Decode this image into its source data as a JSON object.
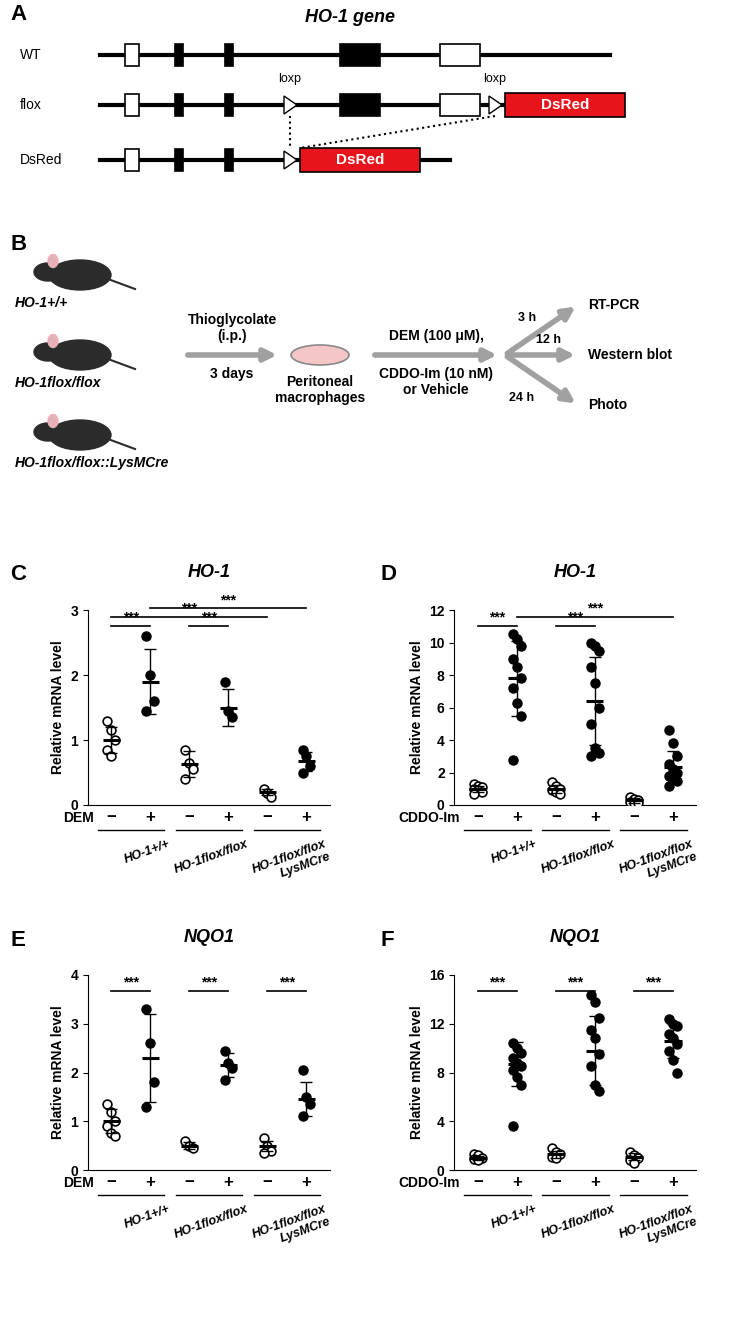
{
  "panel_A": {
    "label": "A",
    "title": "HO-1 gene",
    "rows": [
      "WT",
      "flox",
      "DsRed"
    ],
    "loxp": "loxp",
    "cassette": "DsRed"
  },
  "panel_B": {
    "label": "B",
    "genotypes": [
      "HO-1+/+",
      "HO-1flox/flox",
      "HO-1flox/flox::LysMCre"
    ],
    "injection": "Thioglycolate\n(i.p.)",
    "duration": "3 days",
    "cells": "Peritoneal\nmacrophages",
    "treatment_lines": [
      "DEM (100 μM),",
      "CDDO-Im (10 nM)",
      "or Vehicle"
    ],
    "readouts": [
      {
        "time": "3 h",
        "assay": "RT-PCR"
      },
      {
        "time": "12 h",
        "assay": "Western blot"
      },
      {
        "time": "24 h",
        "assay": "Photo"
      }
    ]
  },
  "chart_data": [
    {
      "panel": "C",
      "type": "scatter",
      "title": "HO-1",
      "ylabel": "Relative mRNA level",
      "treatment": "DEM",
      "categories": [
        "−",
        "+",
        "−",
        "+",
        "−",
        "+"
      ],
      "genotypes": [
        "HO-1+/+",
        "HO-1flox/flox",
        "HO-1flox/flox\nLysMCre"
      ],
      "points": [
        [
          1.3,
          1.15,
          1.0,
          0.85,
          0.75
        ],
        [
          2.6,
          2.0,
          1.6,
          1.45
        ],
        [
          0.85,
          0.65,
          0.55,
          0.4
        ],
        [
          1.9,
          1.45,
          1.35
        ],
        [
          0.25,
          0.18,
          0.12
        ],
        [
          0.85,
          0.75,
          0.6,
          0.5
        ]
      ],
      "means": [
        1.0,
        1.9,
        0.63,
        1.5,
        0.2,
        0.67
      ],
      "sd": [
        0.2,
        0.5,
        0.2,
        0.28,
        0.05,
        0.15
      ],
      "ylim": [
        0,
        3
      ],
      "yticks": [
        0,
        1,
        2,
        3
      ],
      "comparisons": [
        {
          "groups": [
            0,
            1
          ],
          "label": "***"
        },
        {
          "groups": [
            2,
            3
          ],
          "label": "***"
        },
        {
          "groups": [
            0,
            4
          ],
          "label": "***"
        },
        {
          "groups": [
            1,
            5
          ],
          "label": "***"
        }
      ]
    },
    {
      "panel": "D",
      "type": "scatter",
      "title": "HO-1",
      "ylabel": "Relative mRNA level",
      "treatment": "CDDO-Im",
      "categories": [
        "−",
        "+",
        "−",
        "+",
        "−",
        "+"
      ],
      "genotypes": [
        "HO-1+/+",
        "HO-1flox/flox",
        "HO-1flox/flox\nLysMCre"
      ],
      "points": [
        [
          1.3,
          1.2,
          1.1,
          1.0,
          0.9,
          0.8,
          0.7
        ],
        [
          10.5,
          10.2,
          9.8,
          9.0,
          8.5,
          7.8,
          7.2,
          6.3,
          5.5,
          2.8
        ],
        [
          1.4,
          1.2,
          1.0,
          0.9,
          0.8,
          0.7
        ],
        [
          10.0,
          9.8,
          9.5,
          8.5,
          7.5,
          6.0,
          5.0,
          3.5,
          3.2,
          3.0
        ],
        [
          0.5,
          0.4,
          0.3,
          0.2,
          0.15,
          0.1
        ],
        [
          4.6,
          3.8,
          3.0,
          2.5,
          2.2,
          2.0,
          1.8,
          1.6,
          1.5,
          1.2
        ]
      ],
      "means": [
        1.0,
        7.8,
        1.0,
        6.4,
        0.28,
        2.35
      ],
      "sd": [
        0.2,
        2.3,
        0.25,
        2.7,
        0.15,
        1.0
      ],
      "ylim": [
        0,
        12
      ],
      "yticks": [
        0,
        2,
        4,
        6,
        8,
        10,
        12
      ],
      "comparisons": [
        {
          "groups": [
            0,
            1
          ],
          "label": "***"
        },
        {
          "groups": [
            2,
            3
          ],
          "label": "***"
        },
        {
          "groups": [
            1,
            5
          ],
          "label": "***"
        }
      ]
    },
    {
      "panel": "E",
      "type": "scatter",
      "title": "NQO1",
      "ylabel": "Relative mRNA level",
      "treatment": "DEM",
      "categories": [
        "−",
        "+",
        "−",
        "+",
        "−",
        "+"
      ],
      "genotypes": [
        "HO-1+/+",
        "HO-1flox/flox",
        "HO-1flox/flox\nLysMCre"
      ],
      "points": [
        [
          1.35,
          1.2,
          1.0,
          0.9,
          0.75,
          0.7
        ],
        [
          3.3,
          2.6,
          1.8,
          1.3
        ],
        [
          0.6,
          0.5,
          0.45
        ],
        [
          2.45,
          2.2,
          2.1,
          1.85
        ],
        [
          0.65,
          0.5,
          0.4,
          0.35
        ],
        [
          2.05,
          1.5,
          1.35,
          1.1
        ]
      ],
      "means": [
        1.0,
        2.3,
        0.5,
        2.15,
        0.5,
        1.45
      ],
      "sd": [
        0.25,
        0.9,
        0.07,
        0.25,
        0.1,
        0.35
      ],
      "ylim": [
        0,
        4
      ],
      "yticks": [
        0,
        1,
        2,
        3,
        4
      ],
      "comparisons": [
        {
          "groups": [
            0,
            1
          ],
          "label": "***"
        },
        {
          "groups": [
            2,
            3
          ],
          "label": "***"
        },
        {
          "groups": [
            4,
            5
          ],
          "label": "***"
        }
      ]
    },
    {
      "panel": "F",
      "type": "scatter",
      "title": "NQO1",
      "ylabel": "Relative mRNA level",
      "treatment": "CDDO-Im",
      "categories": [
        "−",
        "+",
        "−",
        "+",
        "−",
        "+"
      ],
      "genotypes": [
        "HO-1+/+",
        "HO-1flox/flox",
        "HO-1flox/flox\nLysMCre"
      ],
      "points": [
        [
          1.3,
          1.2,
          1.0,
          0.9,
          0.8
        ],
        [
          10.4,
          10.0,
          9.6,
          9.2,
          8.8,
          8.5,
          8.2,
          7.6,
          7.0,
          3.6
        ],
        [
          1.8,
          1.5,
          1.3,
          1.1,
          1.0
        ],
        [
          14.4,
          13.8,
          12.5,
          11.5,
          10.8,
          9.5,
          8.5,
          7.0,
          6.5
        ],
        [
          1.5,
          1.2,
          1.0,
          0.8,
          0.6
        ],
        [
          12.4,
          12.0,
          11.8,
          11.2,
          10.8,
          10.3,
          9.8,
          9.0,
          8.0
        ]
      ],
      "means": [
        1.0,
        8.7,
        1.3,
        9.8,
        1.1,
        10.6
      ],
      "sd": [
        0.15,
        1.8,
        0.3,
        2.8,
        0.3,
        1.4
      ],
      "ylim": [
        0,
        16
      ],
      "yticks": [
        0,
        4,
        8,
        12,
        16
      ],
      "comparisons": [
        {
          "groups": [
            0,
            1
          ],
          "label": "***"
        },
        {
          "groups": [
            2,
            3
          ],
          "label": "***"
        },
        {
          "groups": [
            4,
            5
          ],
          "label": "***"
        }
      ]
    }
  ]
}
